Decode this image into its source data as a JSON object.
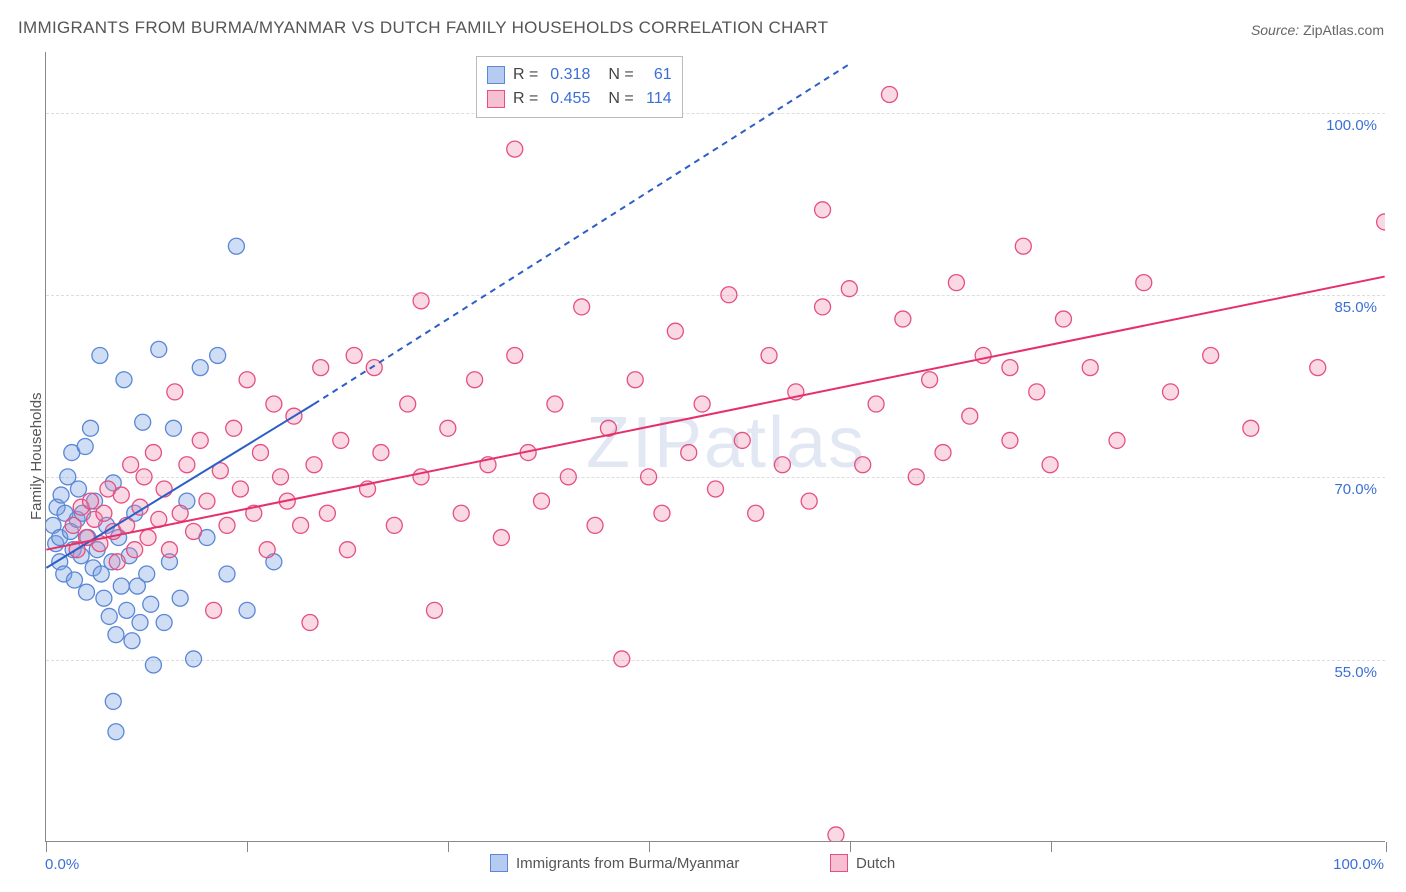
{
  "title": "IMMIGRANTS FROM BURMA/MYANMAR VS DUTCH FAMILY HOUSEHOLDS CORRELATION CHART",
  "source_label": "Source:",
  "source_value": "ZipAtlas.com",
  "ylabel": "Family Households",
  "watermark": "ZIPatlas",
  "chart": {
    "type": "scatter",
    "background_color": "#ffffff",
    "grid_color": "#dddddd",
    "axis_color": "#888888",
    "text_color": "#555555",
    "value_color": "#3b6fd6",
    "xlim": [
      0,
      100
    ],
    "ylim": [
      40,
      105
    ],
    "x_ticks_pct": [
      0,
      15,
      30,
      45,
      60,
      75,
      100
    ],
    "y_gridlines": [
      55,
      70,
      85,
      100
    ],
    "y_tick_labels": [
      "55.0%",
      "70.0%",
      "85.0%",
      "100.0%"
    ],
    "x_start_label": "0.0%",
    "x_end_label": "100.0%",
    "marker_radius": 8,
    "marker_stroke_width": 1.3,
    "series": [
      {
        "id": "burma",
        "name": "Immigrants from Burma/Myanmar",
        "fill": "rgba(120,160,225,0.35)",
        "stroke": "#5a87d6",
        "R": "0.318",
        "N": "61",
        "trend": {
          "solid": {
            "x1": 0,
            "y1": 62.5,
            "x2": 20,
            "y2": 76
          },
          "dashed": {
            "x1": 20,
            "y1": 76,
            "x2": 60,
            "y2": 104
          },
          "stroke": "#2b5fc7",
          "width": 2,
          "dash": "6 5"
        },
        "points": [
          [
            0.5,
            66
          ],
          [
            0.7,
            64.5
          ],
          [
            0.8,
            67.5
          ],
          [
            1,
            63
          ],
          [
            1,
            65
          ],
          [
            1.1,
            68.5
          ],
          [
            1.3,
            62
          ],
          [
            1.4,
            67
          ],
          [
            1.6,
            70
          ],
          [
            1.8,
            65.5
          ],
          [
            1.9,
            72
          ],
          [
            2,
            64
          ],
          [
            2.1,
            61.5
          ],
          [
            2.3,
            66.5
          ],
          [
            2.4,
            69
          ],
          [
            2.6,
            63.5
          ],
          [
            2.7,
            67
          ],
          [
            2.9,
            72.5
          ],
          [
            3,
            60.5
          ],
          [
            3.1,
            65
          ],
          [
            3.3,
            74
          ],
          [
            3.5,
            62.5
          ],
          [
            3.6,
            68
          ],
          [
            3.8,
            64
          ],
          [
            4,
            80
          ],
          [
            4.1,
            62
          ],
          [
            4.3,
            60
          ],
          [
            4.5,
            66
          ],
          [
            4.7,
            58.5
          ],
          [
            4.9,
            63
          ],
          [
            5,
            69.5
          ],
          [
            5.2,
            57
          ],
          [
            5.4,
            65
          ],
          [
            5.6,
            61
          ],
          [
            5.8,
            78
          ],
          [
            6,
            59
          ],
          [
            6.2,
            63.5
          ],
          [
            6.4,
            56.5
          ],
          [
            6.6,
            67
          ],
          [
            6.8,
            61
          ],
          [
            7,
            58
          ],
          [
            7.2,
            74.5
          ],
          [
            7.5,
            62
          ],
          [
            7.8,
            59.5
          ],
          [
            8,
            54.5
          ],
          [
            8.4,
            80.5
          ],
          [
            8.8,
            58
          ],
          [
            9.2,
            63
          ],
          [
            9.5,
            74
          ],
          [
            10,
            60
          ],
          [
            10.5,
            68
          ],
          [
            11,
            55
          ],
          [
            11.5,
            79
          ],
          [
            12,
            65
          ],
          [
            12.8,
            80
          ],
          [
            13.5,
            62
          ],
          [
            14.2,
            89
          ],
          [
            15,
            59
          ],
          [
            17,
            63
          ],
          [
            5.2,
            49
          ],
          [
            5,
            51.5
          ]
        ]
      },
      {
        "id": "dutch",
        "name": "Dutch",
        "fill": "rgba(240,130,165,0.30)",
        "stroke": "#e54f82",
        "R": "0.455",
        "N": "114",
        "trend": {
          "solid": {
            "x1": 0,
            "y1": 64,
            "x2": 100,
            "y2": 86.5
          },
          "stroke": "#e5306a",
          "width": 2
        },
        "points": [
          [
            2,
            66
          ],
          [
            2.3,
            64
          ],
          [
            2.6,
            67.5
          ],
          [
            3,
            65
          ],
          [
            3.3,
            68
          ],
          [
            3.6,
            66.5
          ],
          [
            4,
            64.5
          ],
          [
            4.3,
            67
          ],
          [
            4.6,
            69
          ],
          [
            5,
            65.5
          ],
          [
            5.3,
            63
          ],
          [
            5.6,
            68.5
          ],
          [
            6,
            66
          ],
          [
            6.3,
            71
          ],
          [
            6.6,
            64
          ],
          [
            7,
            67.5
          ],
          [
            7.3,
            70
          ],
          [
            7.6,
            65
          ],
          [
            8,
            72
          ],
          [
            8.4,
            66.5
          ],
          [
            8.8,
            69
          ],
          [
            9.2,
            64
          ],
          [
            9.6,
            77
          ],
          [
            10,
            67
          ],
          [
            10.5,
            71
          ],
          [
            11,
            65.5
          ],
          [
            11.5,
            73
          ],
          [
            12,
            68
          ],
          [
            12.5,
            59
          ],
          [
            13,
            70.5
          ],
          [
            13.5,
            66
          ],
          [
            14,
            74
          ],
          [
            14.5,
            69
          ],
          [
            15,
            78
          ],
          [
            15.5,
            67
          ],
          [
            16,
            72
          ],
          [
            16.5,
            64
          ],
          [
            17,
            76
          ],
          [
            17.5,
            70
          ],
          [
            18,
            68
          ],
          [
            18.5,
            75
          ],
          [
            19,
            66
          ],
          [
            19.7,
            58
          ],
          [
            20,
            71
          ],
          [
            20.5,
            79
          ],
          [
            21,
            67
          ],
          [
            22,
            73
          ],
          [
            22.5,
            64
          ],
          [
            23,
            80
          ],
          [
            24,
            69
          ],
          [
            24.5,
            79
          ],
          [
            25,
            72
          ],
          [
            26,
            66
          ],
          [
            27,
            76
          ],
          [
            28,
            84.5
          ],
          [
            28,
            70
          ],
          [
            29,
            59
          ],
          [
            30,
            74
          ],
          [
            31,
            67
          ],
          [
            32,
            78
          ],
          [
            33,
            71
          ],
          [
            34,
            65
          ],
          [
            35,
            80
          ],
          [
            35,
            97
          ],
          [
            36,
            72
          ],
          [
            37,
            68
          ],
          [
            38,
            76
          ],
          [
            39,
            70
          ],
          [
            40,
            84
          ],
          [
            41,
            66
          ],
          [
            42,
            74
          ],
          [
            43,
            55
          ],
          [
            44,
            78
          ],
          [
            45,
            70
          ],
          [
            46,
            67
          ],
          [
            47,
            82
          ],
          [
            48,
            72
          ],
          [
            49,
            76
          ],
          [
            50,
            69
          ],
          [
            51,
            85
          ],
          [
            52,
            73
          ],
          [
            53,
            67
          ],
          [
            54,
            80
          ],
          [
            55,
            71
          ],
          [
            56,
            77
          ],
          [
            57,
            68
          ],
          [
            58,
            84
          ],
          [
            58,
            92
          ],
          [
            59,
            40.5
          ],
          [
            60,
            85.5
          ],
          [
            61,
            71
          ],
          [
            62,
            76
          ],
          [
            63,
            101.5
          ],
          [
            64,
            83
          ],
          [
            65,
            70
          ],
          [
            66,
            78
          ],
          [
            67,
            72
          ],
          [
            68,
            86
          ],
          [
            69,
            75
          ],
          [
            70,
            80
          ],
          [
            72,
            73
          ],
          [
            73,
            89
          ],
          [
            74,
            77
          ],
          [
            75,
            71
          ],
          [
            76,
            83
          ],
          [
            78,
            79
          ],
          [
            80,
            73
          ],
          [
            82,
            86
          ],
          [
            84,
            77
          ],
          [
            87,
            80
          ],
          [
            90,
            74
          ],
          [
            95,
            79
          ],
          [
            100,
            91
          ],
          [
            72,
            79
          ]
        ]
      }
    ]
  },
  "legend": {
    "items": [
      {
        "swatch_fill": "rgba(120,160,225,0.55)",
        "swatch_stroke": "#5a87d6",
        "label": "Immigrants from Burma/Myanmar"
      },
      {
        "swatch_fill": "rgba(240,130,165,0.50)",
        "swatch_stroke": "#e54f82",
        "label": "Dutch"
      }
    ]
  },
  "stats_box": {
    "rows": [
      {
        "swatch_fill": "rgba(120,160,225,0.55)",
        "swatch_stroke": "#5a87d6",
        "R_label": "R  =",
        "R": "0.318",
        "N_label": "N  =",
        "N": "61"
      },
      {
        "swatch_fill": "rgba(240,130,165,0.50)",
        "swatch_stroke": "#e54f82",
        "R_label": "R  =",
        "R": "0.455",
        "N_label": "N  =",
        "N": "114"
      }
    ]
  }
}
